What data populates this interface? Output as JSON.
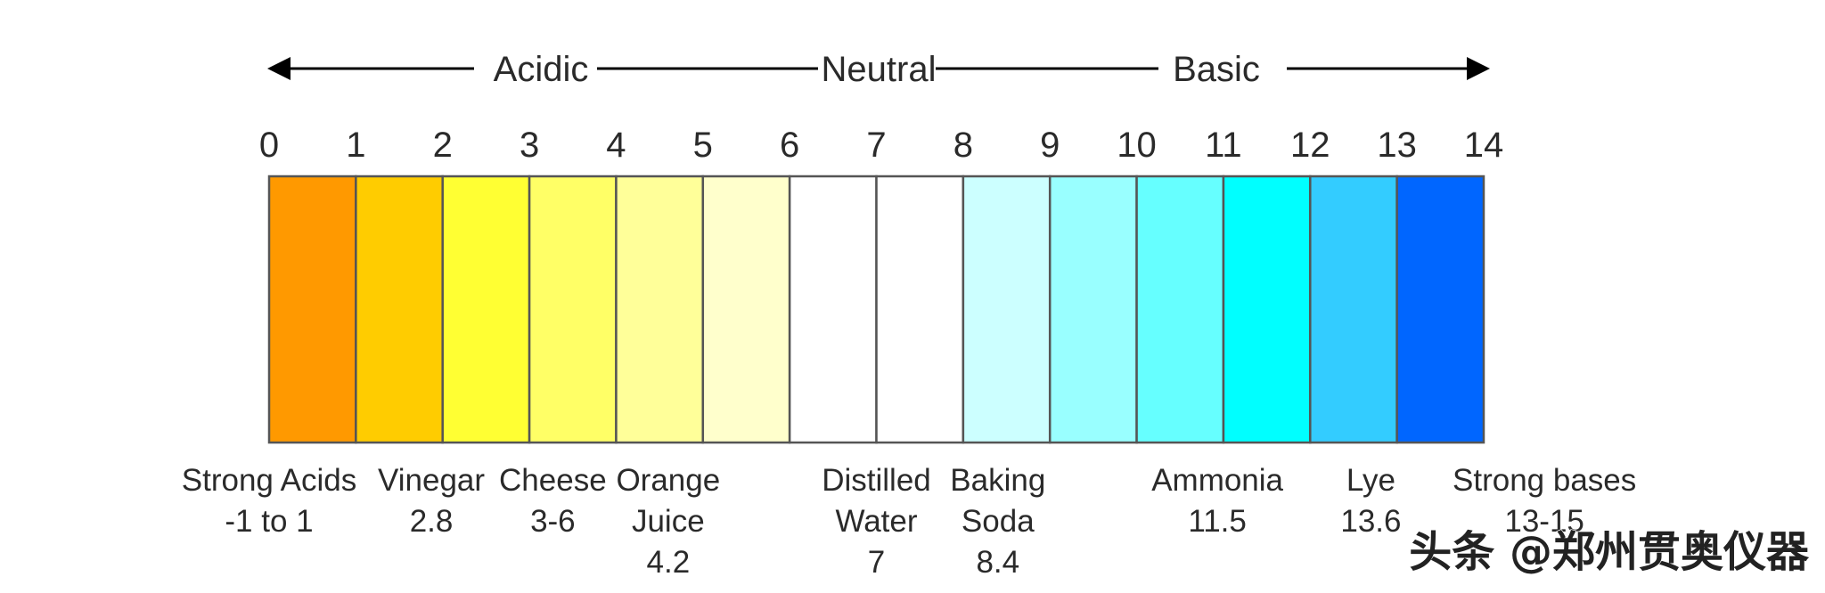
{
  "header": {
    "acidic": "Acidic",
    "neutral": "Neutral",
    "basic": "Basic"
  },
  "scale": {
    "ticks": [
      "0",
      "1",
      "2",
      "3",
      "4",
      "5",
      "6",
      "7",
      "8",
      "9",
      "10",
      "11",
      "12",
      "13",
      "14"
    ],
    "segment_colors": [
      "#FF9900",
      "#FFCC00",
      "#FFFF33",
      "#FFFF66",
      "#FFFF99",
      "#FFFFCC",
      "#FFFFFF",
      "#FFFFFF",
      "#CCFFFF",
      "#99FFFF",
      "#66FFFF",
      "#00FFFF",
      "#33CCFF",
      "#0066FF"
    ]
  },
  "examples": [
    {
      "key": "strong-acids",
      "lines": [
        "Strong Acids",
        "-1 to 1"
      ],
      "ph": 0
    },
    {
      "key": "vinegar",
      "lines": [
        "Vinegar",
        "2.8"
      ],
      "ph": 1.87
    },
    {
      "key": "cheese",
      "lines": [
        "Cheese",
        "3-6"
      ],
      "ph": 3.27
    },
    {
      "key": "orange-juice",
      "lines": [
        "Orange",
        "Juice",
        "4.2"
      ],
      "ph": 4.6
    },
    {
      "key": "distilled-water",
      "lines": [
        "Distilled",
        "Water",
        "7"
      ],
      "ph": 7
    },
    {
      "key": "baking-soda",
      "lines": [
        "Baking",
        "Soda",
        "8.4"
      ],
      "ph": 8.4
    },
    {
      "key": "ammonia",
      "lines": [
        "Ammonia",
        "11.5"
      ],
      "ph": 10.93
    },
    {
      "key": "lye",
      "lines": [
        "Lye",
        "13.6"
      ],
      "ph": 12.7
    },
    {
      "key": "strong-bases",
      "lines": [
        "Strong bases",
        "13-15"
      ],
      "ph": 14.7
    }
  ],
  "watermark": "头条 @郑州贯奥仪器"
}
